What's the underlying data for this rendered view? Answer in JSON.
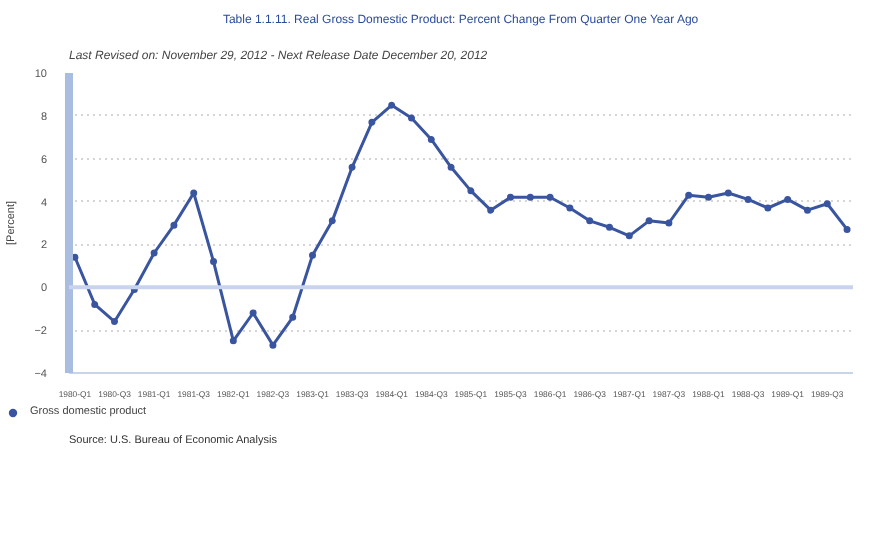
{
  "chart_data": {
    "type": "line",
    "title": "Table 1.1.11. Real Gross Domestic Product: Percent Change From Quarter One Year Ago",
    "subtitle": "Last Revised on: November 29, 2012 - Next Release Date December 20, 2012",
    "ylabel": "[Percent]",
    "annotations": [
      "Source: U.S. Bureau of Economic Analysis"
    ],
    "categories": [
      "1980-Q1",
      null,
      "1980-Q3",
      null,
      "1981-Q1",
      null,
      "1981-Q3",
      null,
      "1982-Q1",
      null,
      "1982-Q3",
      null,
      "1983-Q1",
      null,
      "1983-Q3",
      null,
      "1984-Q1",
      null,
      "1984-Q3",
      null,
      "1985-Q1",
      null,
      "1985-Q3",
      null,
      "1986-Q1",
      null,
      "1986-Q3",
      null,
      "1987-Q1",
      null,
      "1987-Q3",
      null,
      "1988-Q1",
      null,
      "1988-Q3",
      null,
      "1989-Q1",
      null,
      "1989-Q3",
      null
    ],
    "series": [
      {
        "name": "Gross domestic product",
        "color": "#3a55a0",
        "values": [
          1.4,
          -0.8,
          -1.6,
          -0.1,
          1.6,
          2.9,
          4.4,
          1.2,
          -2.5,
          -1.2,
          -2.7,
          -1.4,
          1.5,
          3.1,
          5.6,
          7.7,
          8.5,
          7.9,
          6.9,
          5.6,
          4.5,
          3.6,
          4.2,
          4.2,
          4.2,
          3.7,
          3.1,
          2.8,
          2.4,
          3.1,
          3.0,
          4.3,
          4.2,
          4.4,
          4.1,
          3.7,
          4.1,
          3.6,
          3.9,
          2.7
        ]
      }
    ],
    "ylim": [
      -4,
      10
    ],
    "yticks": [
      -4,
      -2,
      0,
      2,
      4,
      6,
      8,
      10
    ],
    "grid": "y",
    "legend": "bottom left",
    "marker": "circle",
    "line_style": "solid"
  }
}
